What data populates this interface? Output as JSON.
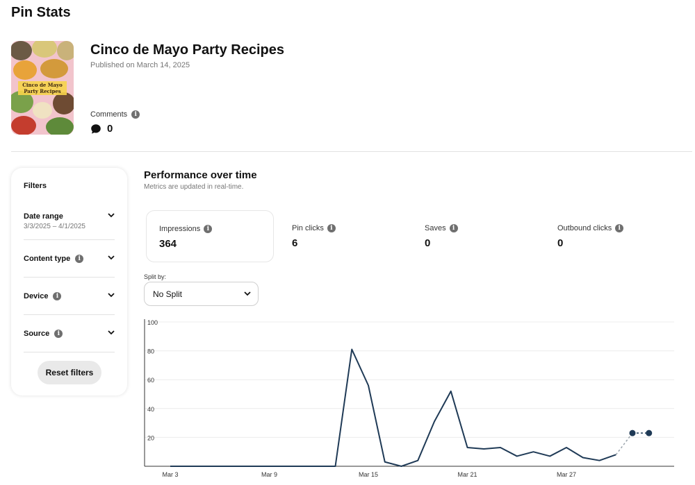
{
  "page": {
    "title": "Pin Stats"
  },
  "pin": {
    "title": "Cinco de Mayo Party Recipes",
    "published": "Published on March 14, 2025",
    "thumbnail_caption": "Cinco de Mayo Party Recipes",
    "comments": {
      "label": "Comments",
      "value": "0"
    }
  },
  "filters": {
    "title": "Filters",
    "items": [
      {
        "label": "Date range",
        "value": "3/3/2025 – 4/1/2025",
        "info": false
      },
      {
        "label": "Content type",
        "value": "",
        "info": true
      },
      {
        "label": "Device",
        "value": "",
        "info": true
      },
      {
        "label": "Source",
        "value": "",
        "info": true
      }
    ],
    "reset_label": "Reset filters"
  },
  "performance": {
    "title": "Performance over time",
    "subtitle": "Metrics are updated in real-time.",
    "metrics": [
      {
        "label": "Impressions",
        "value": "364"
      },
      {
        "label": "Pin clicks",
        "value": "6"
      },
      {
        "label": "Saves",
        "value": "0"
      },
      {
        "label": "Outbound clicks",
        "value": "0"
      }
    ],
    "split": {
      "label": "Split by:",
      "value": "No Split"
    }
  },
  "colors": {
    "line": "#1f3a56",
    "accent_dot": "#1f3a56",
    "grid": "#ececec"
  },
  "chart_data": {
    "type": "line",
    "ylim": [
      0,
      100
    ],
    "yticks": [
      20,
      40,
      60,
      80,
      100
    ],
    "xtick_labels": [
      "Mar 3",
      "Mar 9",
      "Mar 15",
      "Mar 21",
      "Mar 27"
    ],
    "x": [
      "Mar 3",
      "Mar 4",
      "Mar 5",
      "Mar 6",
      "Mar 7",
      "Mar 8",
      "Mar 9",
      "Mar 10",
      "Mar 11",
      "Mar 12",
      "Mar 13",
      "Mar 14",
      "Mar 15",
      "Mar 16",
      "Mar 17",
      "Mar 18",
      "Mar 19",
      "Mar 20",
      "Mar 21",
      "Mar 22",
      "Mar 23",
      "Mar 24",
      "Mar 25",
      "Mar 26",
      "Mar 27",
      "Mar 28",
      "Mar 29",
      "Mar 30",
      "Mar 31",
      "Apr 1"
    ],
    "values": [
      0,
      0,
      0,
      0,
      0,
      0,
      0,
      0,
      0,
      0,
      0,
      81,
      56,
      3,
      0,
      4,
      31,
      52,
      13,
      12,
      13,
      7,
      10,
      7,
      13,
      6,
      4,
      8,
      23,
      23
    ],
    "projected_from_index": 27
  }
}
